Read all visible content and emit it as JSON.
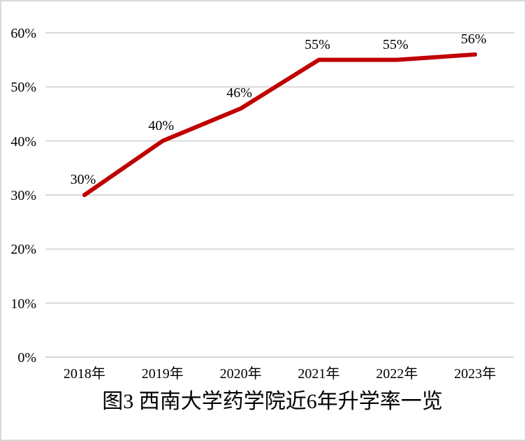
{
  "chart_data": {
    "type": "line",
    "title": "图3 西南大学药学院近6年升学率一览",
    "categories": [
      "2018年",
      "2019年",
      "2020年",
      "2021年",
      "2022年",
      "2023年"
    ],
    "series": [
      {
        "name": "升学率",
        "values": [
          30,
          40,
          46,
          55,
          55,
          56
        ]
      }
    ],
    "data_labels": [
      "30%",
      "40%",
      "46%",
      "55%",
      "55%",
      "56%"
    ],
    "y_ticks": [
      "0%",
      "10%",
      "20%",
      "30%",
      "40%",
      "50%",
      "60%"
    ],
    "ylim": [
      0,
      60
    ],
    "y_tick_step": 10,
    "grid": true,
    "legend": "none",
    "line_color": "#c00000",
    "gridline_color": "#d9d9d9",
    "border_color": "#d9d9d9",
    "text_color": "#000000"
  }
}
